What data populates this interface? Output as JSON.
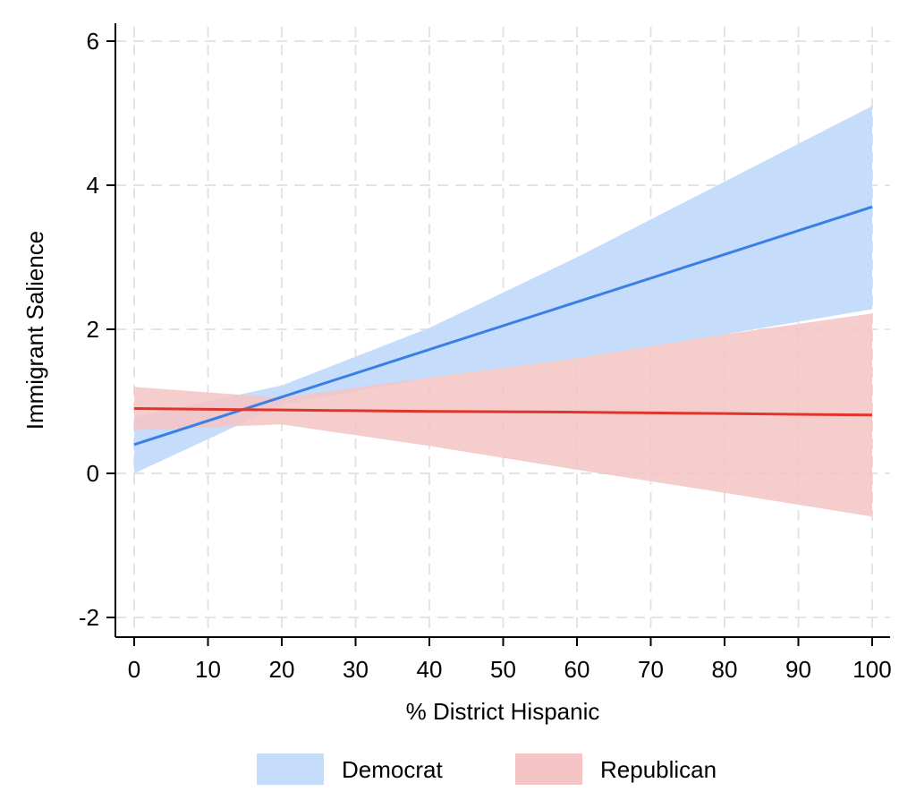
{
  "chart_data": {
    "type": "line",
    "title": "",
    "xlabel": "% District Hispanic",
    "ylabel": "Immigrant Salience",
    "xlim": [
      0,
      100
    ],
    "ylim": [
      -2,
      6.2
    ],
    "x_ticks": [
      0,
      10,
      20,
      30,
      40,
      50,
      60,
      70,
      80,
      90,
      100
    ],
    "y_ticks": [
      -2,
      0,
      2,
      4,
      6
    ],
    "grid": true,
    "legend_position": "bottom",
    "series": [
      {
        "name": "Democrat",
        "color": "#3a7fe6",
        "band_color": "#c5dcfa",
        "x": [
          0,
          20,
          40,
          60,
          80,
          100
        ],
        "y": [
          0.4,
          1.06,
          1.72,
          2.38,
          3.04,
          3.7
        ],
        "lower": [
          0.0,
          0.95,
          1.33,
          1.6,
          1.93,
          2.28
        ],
        "upper": [
          0.78,
          1.22,
          2.02,
          3.0,
          4.05,
          5.1
        ]
      },
      {
        "name": "Republican",
        "color": "#e0352b",
        "band_color": "#f5c4c4",
        "x": [
          0,
          20,
          40,
          60,
          80,
          100
        ],
        "y": [
          0.9,
          0.88,
          0.86,
          0.85,
          0.83,
          0.81
        ],
        "lower": [
          0.6,
          0.68,
          0.38,
          0.05,
          -0.27,
          -0.6
        ],
        "upper": [
          1.2,
          1.05,
          1.33,
          1.6,
          1.93,
          2.22
        ]
      }
    ]
  }
}
